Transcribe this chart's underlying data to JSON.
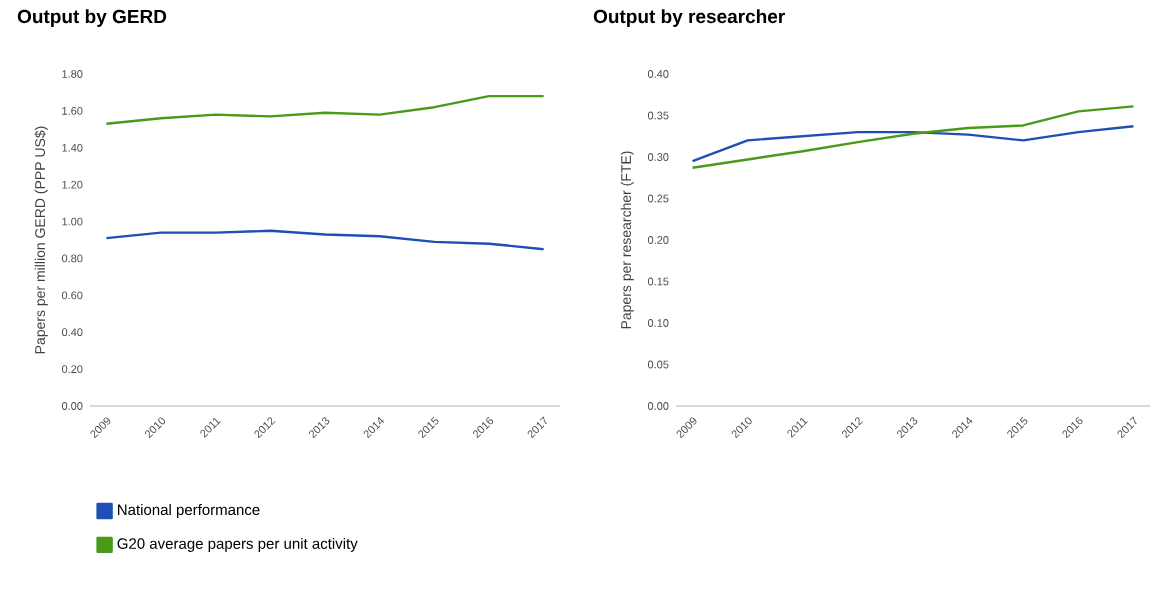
{
  "chart_data": [
    {
      "type": "line",
      "title": "Output by GERD",
      "ylabel": "Papers per million GERD (PPP US$)",
      "categories": [
        "2009",
        "2010",
        "2011",
        "2012",
        "2013",
        "2014",
        "2015",
        "2016",
        "2017"
      ],
      "series": [
        {
          "name": "National performance",
          "color": "#1f4fb4",
          "values": [
            0.91,
            0.94,
            0.94,
            0.95,
            0.93,
            0.92,
            0.89,
            0.88,
            0.85
          ]
        },
        {
          "name": "G20 average papers per unit activity",
          "color": "#4a9a1a",
          "values": [
            1.53,
            1.56,
            1.58,
            1.57,
            1.59,
            1.58,
            1.62,
            1.68,
            1.68
          ]
        }
      ],
      "ylim": [
        0,
        1.8
      ],
      "yticks": [
        {
          "value": 0,
          "label": "0.00"
        },
        {
          "value": 0.2,
          "label": "0.20"
        },
        {
          "value": 0.4,
          "label": "0.40"
        },
        {
          "value": 0.6,
          "label": "0.60"
        },
        {
          "value": 0.8,
          "label": "0.80"
        },
        {
          "value": 1.0,
          "label": "1.00"
        },
        {
          "value": 1.2,
          "label": "1.20"
        },
        {
          "value": 1.4,
          "label": "1.40"
        },
        {
          "value": 1.6,
          "label": "1.60"
        },
        {
          "value": 1.8,
          "label": "1.80"
        }
      ],
      "legend": "bottom"
    },
    {
      "type": "line",
      "title": "Output by researcher",
      "ylabel": "Papers per researcher (FTE)",
      "categories": [
        "2009",
        "2010",
        "2011",
        "2012",
        "2013",
        "2014",
        "2015",
        "2016",
        "2017"
      ],
      "series": [
        {
          "color": "#1f4fb4",
          "values": [
            0.295,
            0.32,
            0.325,
            0.33,
            0.33,
            0.327,
            0.32,
            0.33,
            0.337
          ]
        },
        {
          "color": "#4a9a1a",
          "values": [
            0.287,
            0.297,
            0.307,
            0.318,
            0.328,
            0.335,
            0.338,
            0.355,
            0.361
          ]
        }
      ],
      "ylim": [
        0,
        0.4
      ],
      "yticks": [
        {
          "value": 0,
          "label": "0.00"
        },
        {
          "value": 0.05,
          "label": "0.05"
        },
        {
          "value": 0.1,
          "label": "0.10"
        },
        {
          "value": 0.15,
          "label": "0.15"
        },
        {
          "value": 0.2,
          "label": "0.20"
        },
        {
          "value": 0.25,
          "label": "0.25"
        },
        {
          "value": 0.3,
          "label": "0.30"
        },
        {
          "value": 0.35,
          "label": "0.35"
        },
        {
          "value": 0.4,
          "label": "0.40"
        }
      ]
    }
  ]
}
